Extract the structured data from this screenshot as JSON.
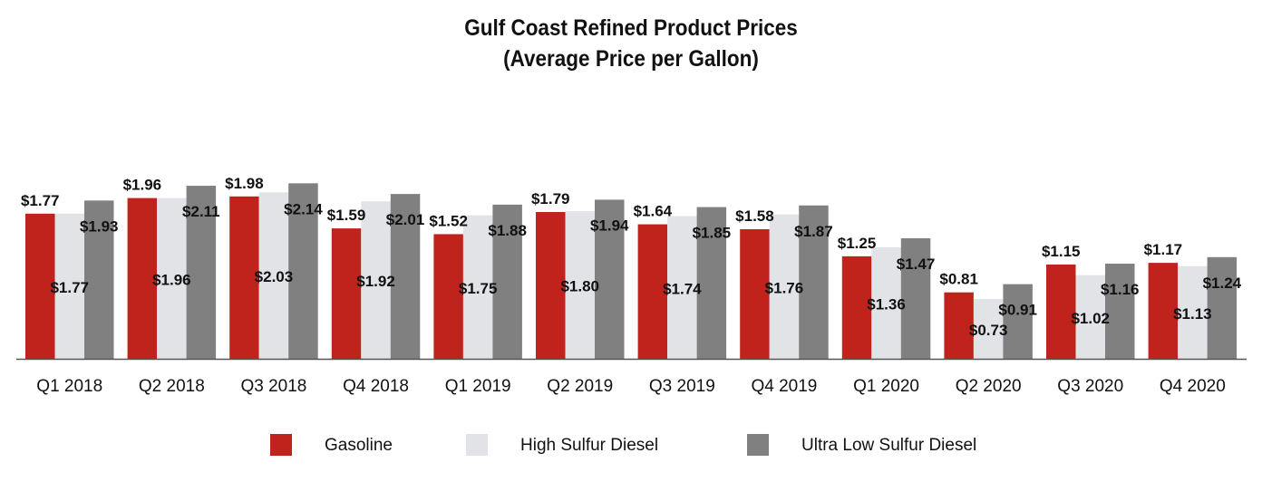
{
  "chart_data": {
    "type": "bar",
    "title": [
      "Gulf Coast Refined Product Prices",
      "(Average Price per Gallon)"
    ],
    "xlabel": "",
    "ylabel": "",
    "ylim": [
      0,
      2.35
    ],
    "grid": false,
    "legend_position": "bottom",
    "value_prefix": "$",
    "categories": [
      "Q1 2018",
      "Q2 2018",
      "Q3 2018",
      "Q4 2018",
      "Q1 2019",
      "Q2 2019",
      "Q3 2019",
      "Q4 2019",
      "Q1 2020",
      "Q2 2020",
      "Q3 2020",
      "Q4 2020"
    ],
    "series": [
      {
        "name": "Gasoline",
        "color": "#c0231b",
        "values": [
          1.77,
          1.96,
          1.98,
          1.59,
          1.52,
          1.79,
          1.64,
          1.58,
          1.25,
          0.81,
          1.15,
          1.17
        ]
      },
      {
        "name": "High Sulfur Diesel",
        "color": "#e2e3e7",
        "values": [
          1.77,
          1.96,
          2.03,
          1.92,
          1.75,
          1.8,
          1.74,
          1.76,
          1.36,
          0.73,
          1.02,
          1.13
        ]
      },
      {
        "name": "Ultra Low Sulfur Diesel",
        "color": "#808080",
        "values": [
          1.93,
          2.11,
          2.14,
          2.01,
          1.88,
          1.94,
          1.85,
          1.87,
          1.47,
          0.91,
          1.16,
          1.24
        ]
      }
    ]
  }
}
